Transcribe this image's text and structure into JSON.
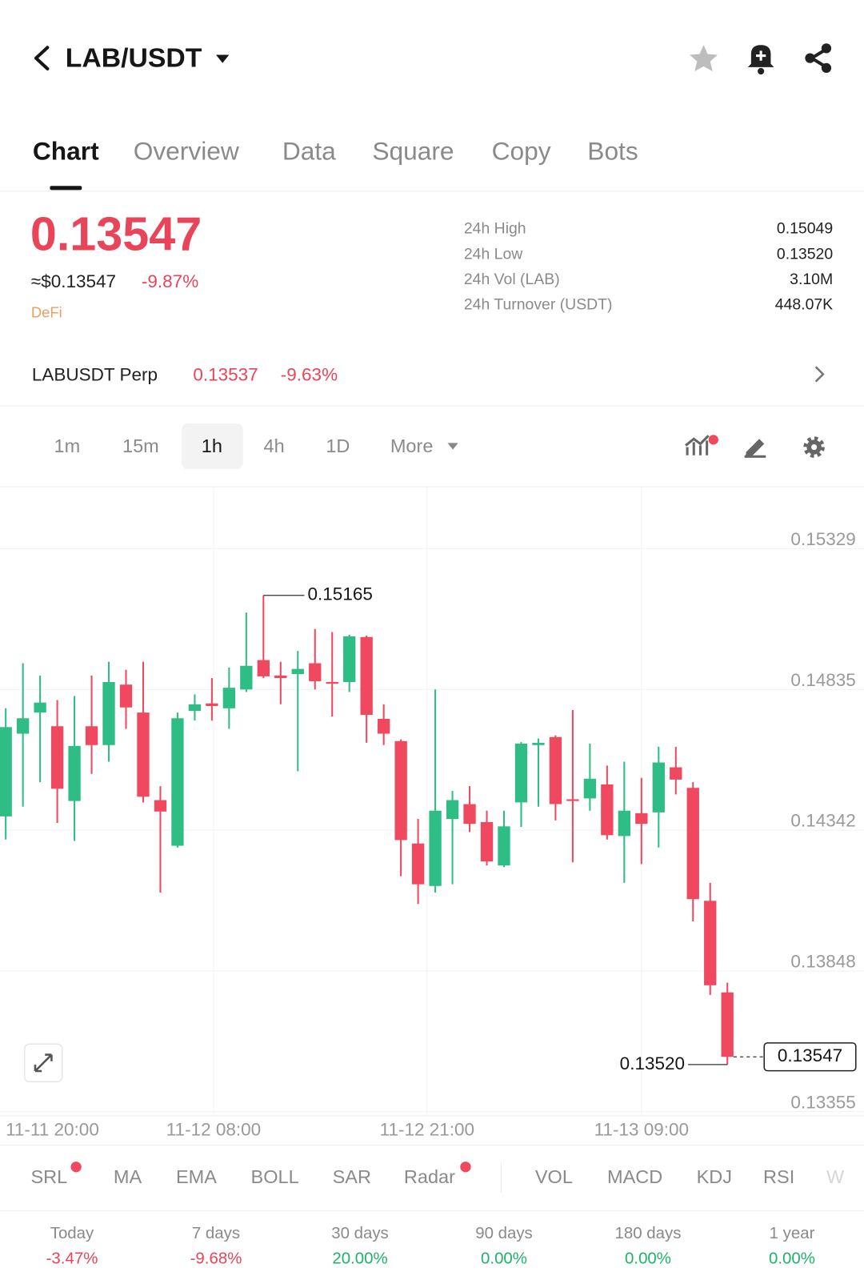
{
  "header": {
    "pair": "LAB/USDT"
  },
  "tabs": [
    "Chart",
    "Overview",
    "Data",
    "Square",
    "Copy",
    "Bots"
  ],
  "price": {
    "last": "0.13547",
    "usd": "≈$0.13547",
    "change": "-9.87%",
    "tag": "DeFi"
  },
  "stats": [
    {
      "label": "24h High",
      "value": "0.15049"
    },
    {
      "label": "24h Low",
      "value": "0.13520"
    },
    {
      "label": "24h Vol (LAB)",
      "value": "3.10M"
    },
    {
      "label": "24h Turnover (USDT)",
      "value": "448.07K"
    }
  ],
  "perp": {
    "name": "LABUSDT Perp",
    "price": "0.13537",
    "change": "-9.63%"
  },
  "intervals": [
    "1m",
    "15m",
    "1h",
    "4h",
    "1D",
    "More"
  ],
  "chart_data": {
    "type": "candlestick",
    "up_color": "#2ebd85",
    "down_color": "#f0485e",
    "grid": true,
    "ylim": [
      0.13342,
      0.15544
    ],
    "yticks": [
      0.15329,
      0.14835,
      0.14342,
      0.13848,
      0.13355
    ],
    "xticks": [
      "11-11 20:00",
      "11-12 08:00",
      "11-12 21:00",
      "11-13 09:00"
    ],
    "max_label": "0.15165",
    "min_label": "0.13520",
    "last_price_label": "0.13547",
    "candles": [
      {
        "open": 0.1439,
        "high": 0.14769,
        "low": 0.14309,
        "close": 0.14703
      },
      {
        "open": 0.1468,
        "high": 0.14927,
        "low": 0.14424,
        "close": 0.14734
      },
      {
        "open": 0.14754,
        "high": 0.14884,
        "low": 0.1451,
        "close": 0.14789
      },
      {
        "open": 0.14706,
        "high": 0.14798,
        "low": 0.14367,
        "close": 0.14487
      },
      {
        "open": 0.14444,
        "high": 0.14812,
        "low": 0.14304,
        "close": 0.14637
      },
      {
        "open": 0.14706,
        "high": 0.14884,
        "low": 0.14539,
        "close": 0.1464
      },
      {
        "open": 0.1464,
        "high": 0.14932,
        "low": 0.14582,
        "close": 0.14861
      },
      {
        "open": 0.14852,
        "high": 0.14904,
        "low": 0.14697,
        "close": 0.14772
      },
      {
        "open": 0.14754,
        "high": 0.14932,
        "low": 0.14439,
        "close": 0.14459
      },
      {
        "open": 0.14447,
        "high": 0.14496,
        "low": 0.14123,
        "close": 0.14407
      },
      {
        "open": 0.14287,
        "high": 0.14754,
        "low": 0.14281,
        "close": 0.14734
      },
      {
        "open": 0.1476,
        "high": 0.14818,
        "low": 0.14726,
        "close": 0.14783
      },
      {
        "open": 0.14786,
        "high": 0.14875,
        "low": 0.14726,
        "close": 0.14777
      },
      {
        "open": 0.14769,
        "high": 0.14912,
        "low": 0.14697,
        "close": 0.14841
      },
      {
        "open": 0.14835,
        "high": 0.15105,
        "low": 0.14826,
        "close": 0.14918
      },
      {
        "open": 0.14938,
        "high": 0.15165,
        "low": 0.14875,
        "close": 0.14881
      },
      {
        "open": 0.14884,
        "high": 0.14932,
        "low": 0.14783,
        "close": 0.14875
      },
      {
        "open": 0.14889,
        "high": 0.1497,
        "low": 0.14548,
        "close": 0.14907
      },
      {
        "open": 0.14927,
        "high": 0.15047,
        "low": 0.14835,
        "close": 0.14864
      },
      {
        "open": 0.14861,
        "high": 0.15036,
        "low": 0.1474,
        "close": 0.14855
      },
      {
        "open": 0.14861,
        "high": 0.15027,
        "low": 0.14826,
        "close": 0.15021
      },
      {
        "open": 0.15019,
        "high": 0.15024,
        "low": 0.14648,
        "close": 0.14746
      },
      {
        "open": 0.14732,
        "high": 0.14783,
        "low": 0.1464,
        "close": 0.1468
      },
      {
        "open": 0.14654,
        "high": 0.1466,
        "low": 0.1418,
        "close": 0.14307
      },
      {
        "open": 0.14295,
        "high": 0.14381,
        "low": 0.14083,
        "close": 0.14152
      },
      {
        "open": 0.14146,
        "high": 0.14835,
        "low": 0.14123,
        "close": 0.1441
      },
      {
        "open": 0.14381,
        "high": 0.14479,
        "low": 0.14152,
        "close": 0.14447
      },
      {
        "open": 0.14433,
        "high": 0.14496,
        "low": 0.14335,
        "close": 0.14364
      },
      {
        "open": 0.1437,
        "high": 0.1441,
        "low": 0.14218,
        "close": 0.14232
      },
      {
        "open": 0.14218,
        "high": 0.1441,
        "low": 0.14212,
        "close": 0.14355
      },
      {
        "open": 0.14439,
        "high": 0.14651,
        "low": 0.14353,
        "close": 0.14645
      },
      {
        "open": 0.1464,
        "high": 0.14663,
        "low": 0.14424,
        "close": 0.14648
      },
      {
        "open": 0.14668,
        "high": 0.14674,
        "low": 0.14376,
        "close": 0.14433
      },
      {
        "open": 0.1445,
        "high": 0.14763,
        "low": 0.14229,
        "close": 0.14444
      },
      {
        "open": 0.14453,
        "high": 0.14645,
        "low": 0.1441,
        "close": 0.14522
      },
      {
        "open": 0.14502,
        "high": 0.14568,
        "low": 0.14309,
        "close": 0.14324
      },
      {
        "open": 0.14321,
        "high": 0.14582,
        "low": 0.14157,
        "close": 0.1441
      },
      {
        "open": 0.14401,
        "high": 0.14525,
        "low": 0.14223,
        "close": 0.14364
      },
      {
        "open": 0.14404,
        "high": 0.14634,
        "low": 0.14281,
        "close": 0.14579
      },
      {
        "open": 0.14562,
        "high": 0.14634,
        "low": 0.14467,
        "close": 0.14519
      },
      {
        "open": 0.1449,
        "high": 0.1451,
        "low": 0.14022,
        "close": 0.141
      },
      {
        "open": 0.14094,
        "high": 0.14157,
        "low": 0.13764,
        "close": 0.13798
      },
      {
        "open": 0.13773,
        "high": 0.13807,
        "low": 0.1352,
        "close": 0.13547
      }
    ]
  },
  "indicators": [
    "SRL",
    "MA",
    "EMA",
    "BOLL",
    "SAR",
    "Radar",
    "VOL",
    "MACD",
    "KDJ",
    "RSI",
    "W"
  ],
  "performance": [
    {
      "period": "Today",
      "change": "-3.47%"
    },
    {
      "period": "7 days",
      "change": "-9.68%"
    },
    {
      "period": "30 days",
      "change": "20.00%"
    },
    {
      "period": "90 days",
      "change": "0.00%"
    },
    {
      "period": "180 days",
      "change": "0.00%"
    },
    {
      "period": "1 year",
      "change": "0.00%"
    }
  ]
}
